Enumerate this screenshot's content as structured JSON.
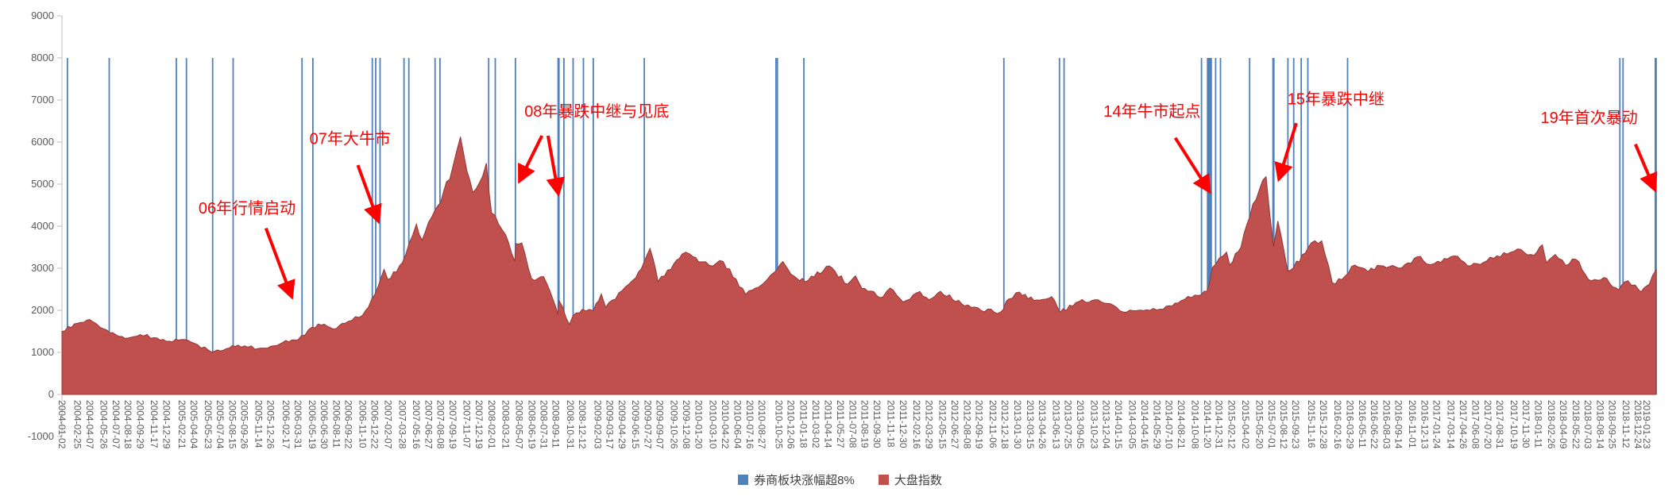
{
  "page": {
    "background": "#ffffff"
  },
  "legend": {
    "items": [
      {
        "label": "券商板块涨幅超8%",
        "color": "#4F81BD"
      },
      {
        "label": "大盘指数",
        "color": "#C0504D"
      }
    ]
  },
  "chart_data": {
    "type": "area",
    "title": "",
    "grid": false,
    "legend_position": "bottom",
    "annotation_color": "#FF0000",
    "y_axis": {
      "min": -1000,
      "max": 9000,
      "tick_interval": 1000,
      "ticks": [
        9000,
        8000,
        7000,
        6000,
        5000,
        4000,
        3000,
        2000,
        1000,
        0,
        -1000
      ]
    },
    "x_axis": {
      "type": "date",
      "min": "2004-01-02",
      "max": "2019-02-25",
      "tick_labels": [
        "2004-01-02",
        "2004-02-25",
        "2004-04-07",
        "2004-05-26",
        "2004-07-07",
        "2004-08-18",
        "2004-09-29",
        "2004-11-17",
        "2004-12-29",
        "2005-02-21",
        "2005-04-04",
        "2005-05-23",
        "2005-07-04",
        "2005-08-15",
        "2005-09-26",
        "2005-11-14",
        "2005-12-26",
        "2006-02-17",
        "2006-03-31",
        "2006-05-19",
        "2006-06-30",
        "2006-08-11",
        "2006-09-22",
        "2006-11-10",
        "2006-12-22",
        "2007-02-07",
        "2007-03-28",
        "2007-05-16",
        "2007-06-27",
        "2007-08-08",
        "2007-09-19",
        "2007-11-07",
        "2007-12-19",
        "2008-02-01",
        "2008-03-21",
        "2008-05-07",
        "2008-06-19",
        "2008-07-31",
        "2008-09-11",
        "2008-10-31",
        "2008-12-12",
        "2009-02-03",
        "2009-03-17",
        "2009-04-29",
        "2009-06-15",
        "2009-07-27",
        "2009-09-07",
        "2009-10-26",
        "2009-12-08",
        "2010-01-20",
        "2010-03-10",
        "2010-04-22",
        "2010-06-04",
        "2010-07-16",
        "2010-08-27",
        "2010-10-25",
        "2010-12-06",
        "2011-01-18",
        "2011-03-02",
        "2011-04-14",
        "2011-05-27",
        "2011-07-08",
        "2011-08-19",
        "2011-09-30",
        "2011-11-18",
        "2011-12-30",
        "2012-02-16",
        "2012-03-29",
        "2012-05-15",
        "2012-06-27",
        "2012-08-08",
        "2012-09-19",
        "2012-11-06",
        "2012-12-18",
        "2013-01-30",
        "2013-03-15",
        "2013-04-26",
        "2013-06-13",
        "2013-07-25",
        "2013-09-05",
        "2013-10-23",
        "2013-12-04",
        "2014-01-15",
        "2014-03-05",
        "2014-04-16",
        "2014-05-29",
        "2014-07-10",
        "2014-08-21",
        "2014-10-08",
        "2014-11-20",
        "2014-12-31",
        "2015-02-12",
        "2015-04-02",
        "2015-05-20",
        "2015-07-01",
        "2015-08-12",
        "2015-09-23",
        "2015-11-16",
        "2015-12-28",
        "2016-02-16",
        "2016-03-29",
        "2016-05-11",
        "2016-06-22",
        "2016-08-03",
        "2016-09-14",
        "2016-11-01",
        "2016-12-13",
        "2017-01-24",
        "2017-03-14",
        "2017-04-26",
        "2017-06-08",
        "2017-07-20",
        "2017-08-31",
        "2017-10-19",
        "2017-11-30",
        "2018-01-11",
        "2018-02-26",
        "2018-04-09",
        "2018-05-22",
        "2018-07-03",
        "2018-08-14",
        "2018-09-25",
        "2018-11-12",
        "2018-12-24",
        "2019-01-23"
      ]
    },
    "series": [
      {
        "name": "券商板块涨幅超8%",
        "type": "event-vline",
        "color": "#4F81BD",
        "top_value": 8000,
        "dates": [
          "2004-01-21",
          "2004-06-14",
          "2005-02-02",
          "2005-03-09",
          "2005-06-08",
          "2005-08-18",
          "2006-04-14",
          "2006-05-22",
          "2006-12-14",
          "2006-12-26",
          "2007-01-10",
          "2007-04-03",
          "2007-04-20",
          "2007-07-20",
          "2007-08-06",
          "2008-01-22",
          "2008-02-14",
          "2008-04-24",
          "2008-09-19",
          "2008-09-22",
          "2008-10-09",
          "2008-11-10",
          "2008-12-16",
          "2009-01-19",
          "2009-07-15",
          "2010-10-15",
          "2010-10-20",
          "2011-01-20",
          "2012-12-14",
          "2013-06-25",
          "2013-07-11",
          "2014-10-31",
          "2014-11-21",
          "2014-11-24",
          "2014-11-26",
          "2014-11-28",
          "2014-12-01",
          "2014-12-04",
          "2014-12-19",
          "2015-01-05",
          "2015-04-16",
          "2015-07-06",
          "2015-07-09",
          "2015-08-27",
          "2015-09-16",
          "2015-10-12",
          "2015-11-04",
          "2016-03-21",
          "2018-10-22",
          "2018-11-02",
          "2019-02-22",
          "2019-02-25"
        ]
      },
      {
        "name": "大盘指数",
        "type": "area",
        "color": "#C0504D",
        "edge_color": "#953735",
        "points": [
          [
            "2004-01-02",
            1497
          ],
          [
            "2004-02-25",
            1690
          ],
          [
            "2004-04-07",
            1783
          ],
          [
            "2004-05-26",
            1560
          ],
          [
            "2004-07-07",
            1420
          ],
          [
            "2004-08-18",
            1342
          ],
          [
            "2004-09-29",
            1425
          ],
          [
            "2004-11-17",
            1350
          ],
          [
            "2004-12-29",
            1266
          ],
          [
            "2005-02-21",
            1306
          ],
          [
            "2005-04-04",
            1220
          ],
          [
            "2005-05-23",
            1060
          ],
          [
            "2005-06-06",
            998
          ],
          [
            "2005-07-04",
            1036
          ],
          [
            "2005-08-15",
            1160
          ],
          [
            "2005-09-26",
            1155
          ],
          [
            "2005-11-14",
            1095
          ],
          [
            "2005-12-26",
            1144
          ],
          [
            "2006-02-17",
            1285
          ],
          [
            "2006-03-31",
            1298
          ],
          [
            "2006-05-19",
            1600
          ],
          [
            "2006-06-30",
            1672
          ],
          [
            "2006-08-11",
            1565
          ],
          [
            "2006-09-22",
            1740
          ],
          [
            "2006-11-10",
            1879
          ],
          [
            "2006-12-22",
            2370
          ],
          [
            "2007-01-24",
            2975
          ],
          [
            "2007-02-06",
            2730
          ],
          [
            "2007-03-28",
            3130
          ],
          [
            "2007-05-16",
            4050
          ],
          [
            "2007-06-05",
            3670
          ],
          [
            "2007-06-27",
            4090
          ],
          [
            "2007-08-08",
            4560
          ],
          [
            "2007-09-19",
            5400
          ],
          [
            "2007-10-16",
            6124
          ],
          [
            "2007-11-07",
            5330
          ],
          [
            "2007-11-28",
            4803
          ],
          [
            "2007-12-19",
            5010
          ],
          [
            "2008-01-14",
            5500
          ],
          [
            "2008-02-01",
            4320
          ],
          [
            "2008-03-21",
            3796
          ],
          [
            "2008-04-22",
            3170
          ],
          [
            "2008-04-25",
            3583
          ],
          [
            "2008-05-16",
            3600
          ],
          [
            "2008-06-19",
            2750
          ],
          [
            "2008-07-31",
            2800
          ],
          [
            "2008-09-11",
            2080
          ],
          [
            "2008-09-18",
            1896
          ],
          [
            "2008-09-22",
            2236
          ],
          [
            "2008-10-28",
            1664
          ],
          [
            "2008-11-10",
            1875
          ],
          [
            "2008-12-12",
            2020
          ],
          [
            "2009-01-19",
            1990
          ],
          [
            "2009-02-16",
            2389
          ],
          [
            "2009-03-03",
            2071
          ],
          [
            "2009-04-29",
            2468
          ],
          [
            "2009-06-15",
            2770
          ],
          [
            "2009-08-04",
            3471
          ],
          [
            "2009-09-01",
            2683
          ],
          [
            "2009-10-26",
            3109
          ],
          [
            "2009-11-23",
            3338
          ],
          [
            "2009-12-31",
            3277
          ],
          [
            "2010-01-20",
            3151
          ],
          [
            "2010-03-10",
            3050
          ],
          [
            "2010-04-15",
            3160
          ],
          [
            "2010-07-02",
            2382
          ],
          [
            "2010-08-27",
            2610
          ],
          [
            "2010-11-08",
            3160
          ],
          [
            "2010-12-06",
            2860
          ],
          [
            "2011-01-25",
            2677
          ],
          [
            "2011-04-18",
            3057
          ],
          [
            "2011-06-20",
            2621
          ],
          [
            "2011-07-18",
            2820
          ],
          [
            "2011-08-09",
            2526
          ],
          [
            "2011-10-21",
            2317
          ],
          [
            "2011-11-15",
            2530
          ],
          [
            "2011-12-30",
            2199
          ],
          [
            "2012-02-27",
            2447
          ],
          [
            "2012-03-29",
            2252
          ],
          [
            "2012-05-08",
            2452
          ],
          [
            "2012-07-31",
            2103
          ],
          [
            "2012-09-26",
            1999
          ],
          [
            "2012-12-03",
            1960
          ],
          [
            "2012-12-31",
            2269
          ],
          [
            "2013-02-06",
            2434
          ],
          [
            "2013-03-28",
            2236
          ],
          [
            "2013-05-29",
            2324
          ],
          [
            "2013-06-27",
            1950
          ],
          [
            "2013-09-12",
            2256
          ],
          [
            "2013-11-18",
            2197
          ],
          [
            "2013-12-31",
            2116
          ],
          [
            "2014-01-20",
            1991
          ],
          [
            "2014-03-20",
            1993
          ],
          [
            "2014-06-20",
            2026
          ],
          [
            "2014-08-21",
            2230
          ],
          [
            "2014-10-08",
            2363
          ],
          [
            "2014-11-20",
            2452
          ],
          [
            "2014-12-08",
            3021
          ],
          [
            "2014-12-31",
            3235
          ],
          [
            "2015-01-26",
            3384
          ],
          [
            "2015-02-06",
            3075
          ],
          [
            "2015-03-17",
            3502
          ],
          [
            "2015-04-27",
            4527
          ],
          [
            "2015-06-12",
            5178
          ],
          [
            "2015-07-08",
            3507
          ],
          [
            "2015-07-23",
            4123
          ],
          [
            "2015-08-26",
            2927
          ],
          [
            "2015-09-15",
            3005
          ],
          [
            "2015-11-16",
            3606
          ],
          [
            "2015-12-22",
            3651
          ],
          [
            "2016-01-28",
            2655
          ],
          [
            "2016-03-01",
            2733
          ],
          [
            "2016-04-15",
            3078
          ],
          [
            "2016-05-31",
            2917
          ],
          [
            "2016-07-13",
            3061
          ],
          [
            "2016-09-14",
            3003
          ],
          [
            "2016-11-29",
            3283
          ],
          [
            "2016-12-20",
            3103
          ],
          [
            "2017-01-16",
            3109
          ],
          [
            "2017-04-07",
            3287
          ],
          [
            "2017-05-11",
            3061
          ],
          [
            "2017-07-17",
            3176
          ],
          [
            "2017-09-14",
            3371
          ],
          [
            "2017-11-13",
            3447
          ],
          [
            "2017-12-28",
            3307
          ],
          [
            "2018-01-26",
            3559
          ],
          [
            "2018-02-09",
            3130
          ],
          [
            "2018-03-12",
            3327
          ],
          [
            "2018-04-17",
            3066
          ],
          [
            "2018-05-22",
            3214
          ],
          [
            "2018-07-05",
            2733
          ],
          [
            "2018-08-27",
            2780
          ],
          [
            "2018-10-18",
            2486
          ],
          [
            "2018-11-19",
            2703
          ],
          [
            "2018-12-27",
            2484
          ],
          [
            "2019-01-04",
            2440
          ],
          [
            "2019-01-23",
            2580
          ],
          [
            "2019-02-01",
            2618
          ],
          [
            "2019-02-25",
            2961
          ]
        ]
      }
    ],
    "annotations": [
      {
        "text": "06年行情启动",
        "text_at": [
          "2005-04-20",
          4300
        ],
        "arrows": [
          {
            "from": [
              "2005-12-10",
              3950
            ],
            "to": [
              "2006-03-08",
              2350
            ]
          }
        ]
      },
      {
        "text": "07年大牛市",
        "text_at": [
          "2006-05-10",
          5950
        ],
        "arrows": [
          {
            "from": [
              "2006-10-25",
              5450
            ],
            "to": [
              "2007-01-02",
              4150
            ]
          }
        ]
      },
      {
        "text": "08年暴跌中继与见底",
        "text_at": [
          "2008-05-25",
          6600
        ],
        "arrows": [
          {
            "from": [
              "2008-07-25",
              6150
            ],
            "to": [
              "2008-05-10",
              5100
            ]
          },
          {
            "from": [
              "2008-08-15",
              6150
            ],
            "to": [
              "2008-09-19",
              4800
            ]
          }
        ]
      },
      {
        "text": "14年牛市起点",
        "text_at": [
          "2013-11-25",
          6600
        ],
        "arrows": [
          {
            "from": [
              "2014-08-01",
              6100
            ],
            "to": [
              "2014-11-25",
              4850
            ]
          }
        ]
      },
      {
        "text": "15年暴跌中继",
        "text_at": [
          "2015-08-25",
          6900
        ],
        "arrows": [
          {
            "from": [
              "2015-09-25",
              6450
            ],
            "to": [
              "2015-07-28",
              5150
            ]
          }
        ]
      },
      {
        "text": "19年首次暴动",
        "text_at": [
          "2018-01-20",
          6450
        ],
        "arrows": [
          {
            "from": [
              "2018-12-15",
              5950
            ],
            "to": [
              "2019-02-18",
              4900
            ]
          }
        ]
      }
    ]
  }
}
